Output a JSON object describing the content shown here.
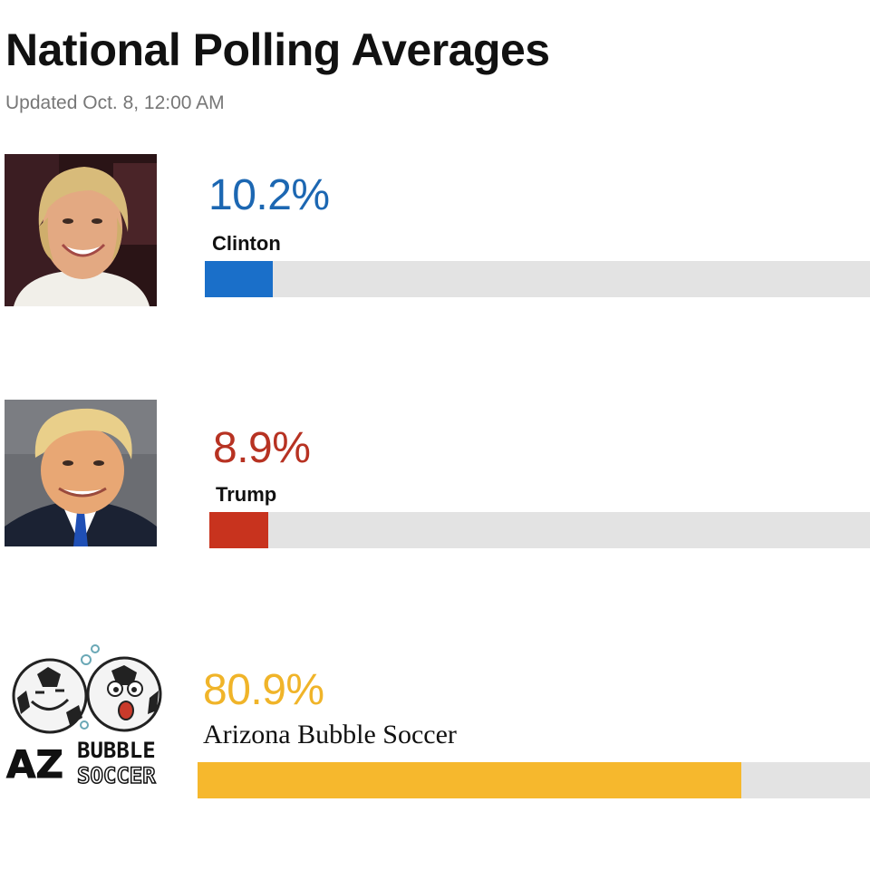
{
  "header": {
    "title": "National Polling Averages",
    "updated": "Updated Oct. 8, 12:00 AM"
  },
  "chart_data": {
    "type": "bar",
    "title": "National Polling Averages",
    "subtitle": "Updated Oct. 8, 12:00 AM",
    "categories": [
      "Clinton",
      "Trump",
      "Arizona Bubble Soccer"
    ],
    "values": [
      10.2,
      8.9,
      80.9
    ],
    "value_labels": [
      "10.2%",
      "8.9%",
      "80.9%"
    ],
    "ylim": [
      0,
      100
    ],
    "colors": [
      "#1a6fc9",
      "#c8331e",
      "#f6b82d"
    ],
    "label_colors": [
      "#1c67b2",
      "#b73222",
      "#f0b429"
    ],
    "track_color": "#e3e3e3",
    "orientation": "horizontal"
  },
  "logo": {
    "line1": "AZ",
    "line2": "BUBBLE",
    "line3": "SOCCER"
  }
}
